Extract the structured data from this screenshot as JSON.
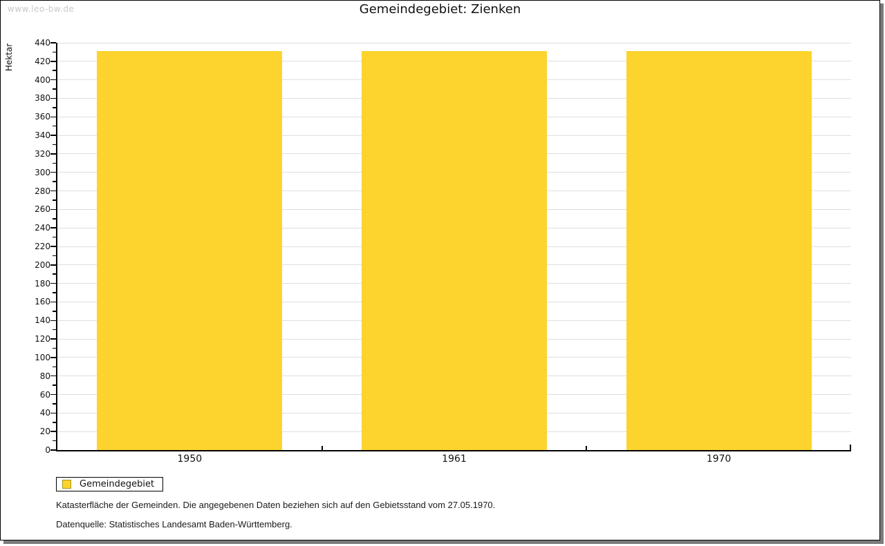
{
  "watermark": "www.leo-bw.de",
  "header": {
    "title": "Gemeindegebiet: Zienken"
  },
  "chart_data": {
    "type": "bar",
    "title": "Gemeindegebiet: Zienken",
    "categories": [
      "1950",
      "1961",
      "1970"
    ],
    "series": [
      {
        "name": "Gemeindegebiet",
        "values": [
          431,
          431,
          431
        ]
      }
    ],
    "xlabel": "",
    "ylabel": "Hektar",
    "ylim": [
      0,
      440
    ],
    "ytick_step": 20,
    "yminor_step": 10,
    "grid": true,
    "legend_position": "bottom-left",
    "bar_color": "#FCD42D",
    "bar_width_fraction": 0.7,
    "gridline_color": "#DEDEDE",
    "axis_color": "#000000"
  },
  "legend": {
    "items": [
      {
        "label": "Gemeindegebiet",
        "color": "#FCD42D",
        "swatch_border": "#A69520"
      }
    ]
  },
  "footer": {
    "line1": "Katasterfläche der Gemeinden. Die angegebenen Daten beziehen sich auf den Gebietsstand vom 27.05.1970.",
    "line2": "Datenquelle: Statistisches Landesamt Baden-Württemberg."
  }
}
